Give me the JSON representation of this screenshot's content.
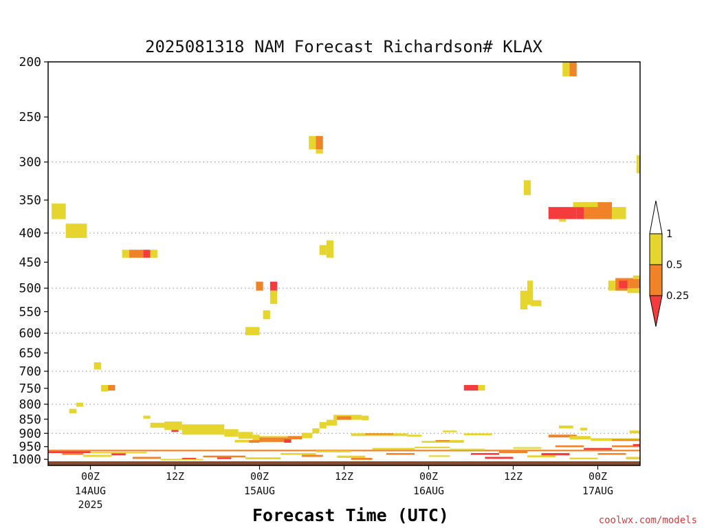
{
  "chart_data": {
    "type": "heatmap",
    "title": "2025081318 NAM Forecast Richardson# KLAX",
    "xlabel": "Forecast Time (UTC)",
    "ylabel": "",
    "credit": "coolwx.com/models",
    "y_axis": {
      "scale": "log",
      "reversed": true,
      "unit": "hPa",
      "ylim": [
        200,
        1025
      ],
      "ticks": [
        200,
        250,
        300,
        350,
        400,
        450,
        500,
        550,
        600,
        650,
        700,
        750,
        800,
        850,
        900,
        950,
        1000
      ],
      "dotted_grid_at": [
        300,
        400,
        500,
        600,
        700,
        800,
        900
      ]
    },
    "x_axis": {
      "unit": "forecast hours from 2025-08-13 18Z",
      "xlim": [
        0,
        84
      ],
      "ticks": [
        {
          "x": 6,
          "label": "00Z",
          "sub": [
            "14AUG",
            "2025"
          ]
        },
        {
          "x": 18,
          "label": "12Z",
          "sub": []
        },
        {
          "x": 30,
          "label": "00Z",
          "sub": [
            "15AUG"
          ]
        },
        {
          "x": 42,
          "label": "12Z",
          "sub": []
        },
        {
          "x": 54,
          "label": "00Z",
          "sub": [
            "16AUG"
          ]
        },
        {
          "x": 66,
          "label": "12Z",
          "sub": []
        },
        {
          "x": 78,
          "label": "00Z",
          "sub": [
            "17AUG"
          ]
        }
      ]
    },
    "colorbar": {
      "levels": [
        "1",
        "0.5",
        "0.25"
      ],
      "classes": [
        {
          "range": ">1",
          "color": "#ffffff"
        },
        {
          "range": "0.5-1",
          "color": "#e6d52e"
        },
        {
          "range": "0.25-0.5",
          "color": "#f08228"
        },
        {
          "range": "<0.25",
          "color": "#f53c3c"
        }
      ]
    },
    "surface": {
      "p_top": 1008,
      "p_bottom": 1025,
      "color": "#8b4a2b"
    },
    "cells": [
      {
        "x0": 0.5,
        "x1": 2.5,
        "p0": 355,
        "p1": 378,
        "cls": "y"
      },
      {
        "x0": 2.5,
        "x1": 5.5,
        "p0": 385,
        "p1": 408,
        "cls": "y"
      },
      {
        "x0": 10.5,
        "x1": 11.5,
        "p0": 428,
        "p1": 442,
        "cls": "y"
      },
      {
        "x0": 11.5,
        "x1": 13.5,
        "p0": 428,
        "p1": 442,
        "cls": "o"
      },
      {
        "x0": 13.5,
        "x1": 14.5,
        "p0": 428,
        "p1": 442,
        "cls": "r"
      },
      {
        "x0": 14.5,
        "x1": 15.5,
        "p0": 428,
        "p1": 442,
        "cls": "y"
      },
      {
        "x0": 37,
        "x1": 38,
        "p0": 270,
        "p1": 285,
        "cls": "y"
      },
      {
        "x0": 38,
        "x1": 39,
        "p0": 270,
        "p1": 285,
        "cls": "o"
      },
      {
        "x0": 38,
        "x1": 39,
        "p0": 285,
        "p1": 290,
        "cls": "y"
      },
      {
        "x0": 73,
        "x1": 74,
        "p0": 200,
        "p1": 212,
        "cls": "y"
      },
      {
        "x0": 74,
        "x1": 75,
        "p0": 200,
        "p1": 212,
        "cls": "o"
      },
      {
        "x0": 67.5,
        "x1": 68.5,
        "p0": 323,
        "p1": 343,
        "cls": "y"
      },
      {
        "x0": 71,
        "x1": 75,
        "p0": 360,
        "p1": 378,
        "cls": "r"
      },
      {
        "x0": 72.5,
        "x1": 73.5,
        "p0": 378,
        "p1": 382,
        "cls": "y"
      },
      {
        "x0": 75,
        "x1": 76,
        "p0": 360,
        "p1": 378,
        "cls": "r"
      },
      {
        "x0": 76,
        "x1": 80,
        "p0": 353,
        "p1": 378,
        "cls": "o"
      },
      {
        "x0": 74.5,
        "x1": 78,
        "p0": 353,
        "p1": 360,
        "cls": "y"
      },
      {
        "x0": 80,
        "x1": 82,
        "p0": 360,
        "p1": 378,
        "cls": "y"
      },
      {
        "x0": 83.5,
        "x1": 84.5,
        "p0": 292,
        "p1": 314,
        "cls": "y"
      },
      {
        "x0": 38.5,
        "x1": 39.5,
        "p0": 420,
        "p1": 437,
        "cls": "y"
      },
      {
        "x0": 39.5,
        "x1": 40.5,
        "p0": 412,
        "p1": 442,
        "cls": "y"
      },
      {
        "x0": 29.5,
        "x1": 30.5,
        "p0": 487,
        "p1": 505,
        "cls": "o"
      },
      {
        "x0": 31.5,
        "x1": 32.5,
        "p0": 487,
        "p1": 505,
        "cls": "r"
      },
      {
        "x0": 31.5,
        "x1": 32.5,
        "p0": 505,
        "p1": 533,
        "cls": "y"
      },
      {
        "x0": 30.5,
        "x1": 31.5,
        "p0": 547,
        "p1": 567,
        "cls": "y"
      },
      {
        "x0": 28,
        "x1": 30,
        "p0": 585,
        "p1": 605,
        "cls": "y"
      },
      {
        "x0": 67,
        "x1": 68,
        "p0": 505,
        "p1": 545,
        "cls": "y"
      },
      {
        "x0": 68,
        "x1": 68.8,
        "p0": 485,
        "p1": 535,
        "cls": "y"
      },
      {
        "x0": 68.5,
        "x1": 70,
        "p0": 525,
        "p1": 538,
        "cls": "y"
      },
      {
        "x0": 79.5,
        "x1": 80.5,
        "p0": 485,
        "p1": 505,
        "cls": "y"
      },
      {
        "x0": 80.5,
        "x1": 82.5,
        "p0": 480,
        "p1": 505,
        "cls": "o"
      },
      {
        "x0": 81,
        "x1": 82.2,
        "p0": 485,
        "p1": 500,
        "cls": "r"
      },
      {
        "x0": 82.5,
        "x1": 84,
        "p0": 480,
        "p1": 500,
        "cls": "o"
      },
      {
        "x0": 82.2,
        "x1": 84,
        "p0": 500,
        "p1": 510,
        "cls": "y"
      },
      {
        "x0": 83,
        "x1": 84,
        "p0": 475,
        "p1": 482,
        "cls": "y"
      },
      {
        "x0": 6.5,
        "x1": 7.5,
        "p0": 675,
        "p1": 695,
        "cls": "y"
      },
      {
        "x0": 7.5,
        "x1": 8.5,
        "p0": 740,
        "p1": 760,
        "cls": "y"
      },
      {
        "x0": 8.5,
        "x1": 9.5,
        "p0": 740,
        "p1": 757,
        "cls": "o"
      },
      {
        "x0": 3,
        "x1": 4,
        "p0": 815,
        "p1": 830,
        "cls": "y"
      },
      {
        "x0": 4,
        "x1": 5,
        "p0": 795,
        "p1": 808,
        "cls": "y"
      },
      {
        "x0": 59,
        "x1": 61,
        "p0": 740,
        "p1": 757,
        "cls": "r"
      },
      {
        "x0": 61,
        "x1": 62,
        "p0": 740,
        "p1": 757,
        "cls": "y"
      },
      {
        "x0": 13.5,
        "x1": 14.5,
        "p0": 838,
        "p1": 848,
        "cls": "y"
      },
      {
        "x0": 14.5,
        "x1": 16.5,
        "p0": 862,
        "p1": 880,
        "cls": "y"
      },
      {
        "x0": 16.5,
        "x1": 19,
        "p0": 858,
        "p1": 888,
        "cls": "y"
      },
      {
        "x0": 17.5,
        "x1": 18.5,
        "p0": 888,
        "p1": 895,
        "cls": "r"
      },
      {
        "x0": 19,
        "x1": 25,
        "p0": 868,
        "p1": 905,
        "cls": "y"
      },
      {
        "x0": 25,
        "x1": 27,
        "p0": 885,
        "p1": 912,
        "cls": "y"
      },
      {
        "x0": 27,
        "x1": 29,
        "p0": 895,
        "p1": 920,
        "cls": "y"
      },
      {
        "x0": 26.5,
        "x1": 28.5,
        "p0": 924,
        "p1": 934,
        "cls": "y"
      },
      {
        "x0": 29,
        "x1": 30,
        "p0": 905,
        "p1": 930,
        "cls": "y"
      },
      {
        "x0": 28.5,
        "x1": 30,
        "p0": 925,
        "p1": 935,
        "cls": "o"
      },
      {
        "x0": 30,
        "x1": 34,
        "p0": 915,
        "p1": 932,
        "cls": "o"
      },
      {
        "x0": 30,
        "x1": 34,
        "p0": 910,
        "p1": 915,
        "cls": "y"
      },
      {
        "x0": 33.5,
        "x1": 34.5,
        "p0": 922,
        "p1": 935,
        "cls": "r"
      },
      {
        "x0": 34,
        "x1": 36,
        "p0": 910,
        "p1": 922,
        "cls": "o"
      },
      {
        "x0": 36,
        "x1": 37.5,
        "p0": 898,
        "p1": 918,
        "cls": "y"
      },
      {
        "x0": 37.5,
        "x1": 38.5,
        "p0": 882,
        "p1": 900,
        "cls": "y"
      },
      {
        "x0": 38.5,
        "x1": 39.5,
        "p0": 860,
        "p1": 882,
        "cls": "y"
      },
      {
        "x0": 39.5,
        "x1": 41,
        "p0": 852,
        "p1": 872,
        "cls": "y"
      },
      {
        "x0": 40.5,
        "x1": 44.5,
        "p0": 835,
        "p1": 852,
        "cls": "y"
      },
      {
        "x0": 41,
        "x1": 43,
        "p0": 840,
        "p1": 852,
        "cls": "o"
      },
      {
        "x0": 44.5,
        "x1": 45.5,
        "p0": 838,
        "p1": 854,
        "cls": "y"
      },
      {
        "x0": 43,
        "x1": 51,
        "p0": 900,
        "p1": 910,
        "cls": "y"
      },
      {
        "x0": 45,
        "x1": 49,
        "p0": 900,
        "p1": 905,
        "cls": "o"
      },
      {
        "x0": 51,
        "x1": 53,
        "p0": 905,
        "p1": 912,
        "cls": "y"
      },
      {
        "x0": 53,
        "x1": 57,
        "p0": 928,
        "p1": 935,
        "cls": "y"
      },
      {
        "x0": 57,
        "x1": 59,
        "p0": 925,
        "p1": 935,
        "cls": "y"
      },
      {
        "x0": 55,
        "x1": 57,
        "p0": 925,
        "p1": 930,
        "cls": "o"
      },
      {
        "x0": 59,
        "x1": 63,
        "p0": 900,
        "p1": 907,
        "cls": "y"
      },
      {
        "x0": 56,
        "x1": 58,
        "p0": 890,
        "p1": 896,
        "cls": "y"
      },
      {
        "x0": 72.5,
        "x1": 74.5,
        "p0": 872,
        "p1": 882,
        "cls": "y"
      },
      {
        "x0": 75.5,
        "x1": 76.5,
        "p0": 880,
        "p1": 890,
        "cls": "y"
      },
      {
        "x0": 71,
        "x1": 75,
        "p0": 905,
        "p1": 915,
        "cls": "o"
      },
      {
        "x0": 74,
        "x1": 77,
        "p0": 910,
        "p1": 922,
        "cls": "y"
      },
      {
        "x0": 77,
        "x1": 84,
        "p0": 918,
        "p1": 928,
        "cls": "y"
      },
      {
        "x0": 80,
        "x1": 84,
        "p0": 922,
        "p1": 928,
        "cls": "o"
      },
      {
        "x0": 82.5,
        "x1": 84,
        "p0": 890,
        "p1": 900,
        "cls": "y"
      },
      {
        "x0": 0,
        "x1": 84,
        "p0": 962,
        "p1": 968,
        "cls": "o"
      },
      {
        "x0": 0,
        "x1": 6,
        "p0": 968,
        "p1": 975,
        "cls": "r"
      },
      {
        "x0": 6,
        "x1": 14,
        "p0": 970,
        "p1": 976,
        "cls": "y"
      },
      {
        "x0": 2,
        "x1": 5,
        "p0": 975,
        "p1": 982,
        "cls": "o"
      },
      {
        "x0": 5,
        "x1": 9,
        "p0": 982,
        "p1": 990,
        "cls": "y"
      },
      {
        "x0": 9,
        "x1": 11,
        "p0": 976,
        "p1": 984,
        "cls": "r"
      },
      {
        "x0": 12,
        "x1": 16,
        "p0": 990,
        "p1": 998,
        "cls": "o"
      },
      {
        "x0": 16,
        "x1": 22,
        "p0": 998,
        "p1": 1004,
        "cls": "y"
      },
      {
        "x0": 19,
        "x1": 21,
        "p0": 994,
        "p1": 999,
        "cls": "r"
      },
      {
        "x0": 22,
        "x1": 28,
        "p0": 985,
        "p1": 992,
        "cls": "o"
      },
      {
        "x0": 24,
        "x1": 26,
        "p0": 992,
        "p1": 999,
        "cls": "r"
      },
      {
        "x0": 28,
        "x1": 33,
        "p0": 992,
        "p1": 1000,
        "cls": "y"
      },
      {
        "x0": 33,
        "x1": 38,
        "p0": 975,
        "p1": 982,
        "cls": "y"
      },
      {
        "x0": 36,
        "x1": 39,
        "p0": 982,
        "p1": 990,
        "cls": "o"
      },
      {
        "x0": 38,
        "x1": 43,
        "p0": 965,
        "p1": 972,
        "cls": "y"
      },
      {
        "x0": 41,
        "x1": 45,
        "p0": 985,
        "p1": 994,
        "cls": "y"
      },
      {
        "x0": 43,
        "x1": 46,
        "p0": 994,
        "p1": 1002,
        "cls": "o"
      },
      {
        "x0": 46,
        "x1": 52,
        "p0": 955,
        "p1": 962,
        "cls": "y"
      },
      {
        "x0": 48,
        "x1": 52,
        "p0": 975,
        "p1": 982,
        "cls": "o"
      },
      {
        "x0": 52,
        "x1": 57,
        "p0": 950,
        "p1": 956,
        "cls": "y"
      },
      {
        "x0": 54,
        "x1": 57,
        "p0": 984,
        "p1": 990,
        "cls": "y"
      },
      {
        "x0": 57,
        "x1": 62,
        "p0": 958,
        "p1": 964,
        "cls": "y"
      },
      {
        "x0": 60,
        "x1": 64,
        "p0": 975,
        "p1": 982,
        "cls": "r"
      },
      {
        "x0": 62,
        "x1": 66,
        "p0": 990,
        "p1": 998,
        "cls": "r"
      },
      {
        "x0": 64,
        "x1": 68,
        "p0": 968,
        "p1": 975,
        "cls": "o"
      },
      {
        "x0": 66,
        "x1": 70,
        "p0": 952,
        "p1": 958,
        "cls": "y"
      },
      {
        "x0": 68,
        "x1": 72,
        "p0": 984,
        "p1": 992,
        "cls": "y"
      },
      {
        "x0": 70,
        "x1": 74,
        "p0": 975,
        "p1": 984,
        "cls": "r"
      },
      {
        "x0": 72,
        "x1": 76,
        "p0": 945,
        "p1": 952,
        "cls": "o"
      },
      {
        "x0": 74,
        "x1": 78,
        "p0": 993,
        "p1": 1000,
        "cls": "y"
      },
      {
        "x0": 76,
        "x1": 80,
        "p0": 955,
        "p1": 962,
        "cls": "r"
      },
      {
        "x0": 78,
        "x1": 82,
        "p0": 975,
        "p1": 982,
        "cls": "o"
      },
      {
        "x0": 80,
        "x1": 84,
        "p0": 945,
        "p1": 952,
        "cls": "o"
      },
      {
        "x0": 82,
        "x1": 84,
        "p0": 990,
        "p1": 1000,
        "cls": "y"
      },
      {
        "x0": 83,
        "x1": 84,
        "p0": 940,
        "p1": 948,
        "cls": "r"
      }
    ]
  }
}
